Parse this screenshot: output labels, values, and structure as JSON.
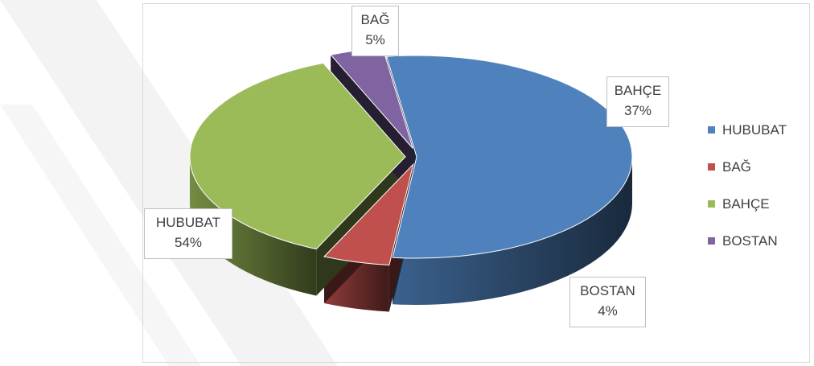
{
  "chart_data": {
    "type": "pie",
    "title": "",
    "style": "3d-exploded",
    "legend_position": "right",
    "slices": [
      {
        "label": "HUBUBAT",
        "value": 54,
        "display": "54%",
        "color": "#4f81bd"
      },
      {
        "label": "BAĞ",
        "value": 5,
        "display": "5%",
        "color": "#c0504d"
      },
      {
        "label": "BAHÇE",
        "value": 37,
        "display": "37%",
        "color": "#9bbb59"
      },
      {
        "label": "BOSTAN",
        "value": 4,
        "display": "4%",
        "color": "#8064a2"
      }
    ]
  }
}
